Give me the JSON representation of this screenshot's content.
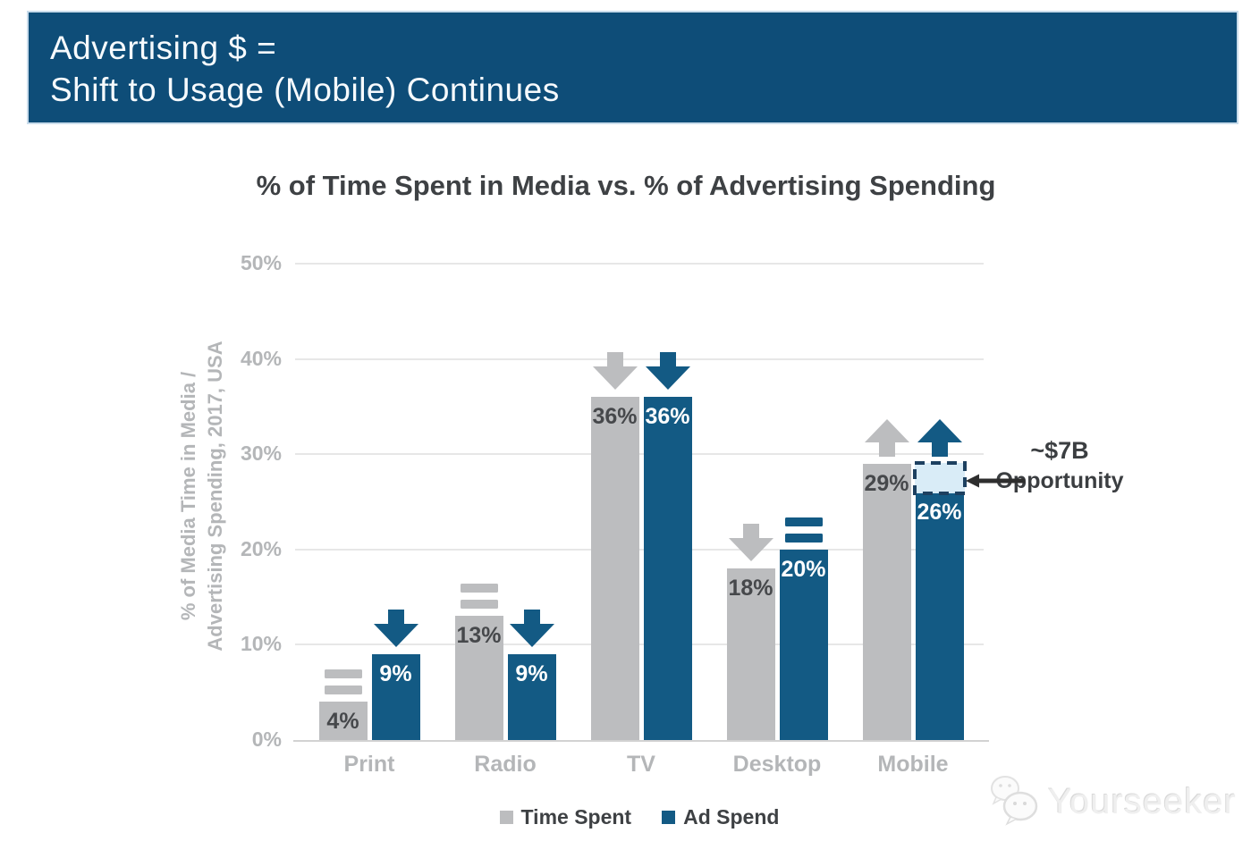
{
  "header": {
    "line1": "Advertising $ =",
    "line2": "Shift to Usage (Mobile) Continues",
    "background_color": "#0e4d78"
  },
  "chart_data": {
    "type": "bar",
    "title": "% of Time Spent in Media vs. % of Advertising Spending",
    "categories": [
      "Print",
      "Radio",
      "TV",
      "Desktop",
      "Mobile"
    ],
    "series": [
      {
        "name": "Time Spent",
        "color": "#bcbdbf",
        "values": [
          4,
          13,
          36,
          18,
          29
        ],
        "trend_icons": [
          "equals",
          "equals",
          "down-arrow",
          "down-arrow",
          "up-arrow"
        ]
      },
      {
        "name": "Ad Spend",
        "color": "#135a84",
        "values": [
          9,
          9,
          36,
          20,
          26
        ],
        "trend_icons": [
          "down-arrow",
          "down-arrow",
          "down-arrow",
          "equals",
          "up-arrow"
        ]
      }
    ],
    "value_suffix": "%",
    "ylabel_line1": "% of Media Time in Media /",
    "ylabel_line2": "Advertising Spending, 2017, USA",
    "ytick_values": [
      0,
      10,
      20,
      30,
      40,
      50
    ],
    "ylim": [
      0,
      50
    ],
    "grid": true,
    "legend_position": "bottom",
    "annotation": {
      "line1": "~$7B",
      "line2": "Opportunity",
      "category": "Mobile",
      "series": "Ad Spend",
      "gap_from": 26,
      "gap_to": 29,
      "fill": "#d9ecf7",
      "border": "#1d4060"
    }
  },
  "watermark": {
    "text": "Yourseeker"
  }
}
